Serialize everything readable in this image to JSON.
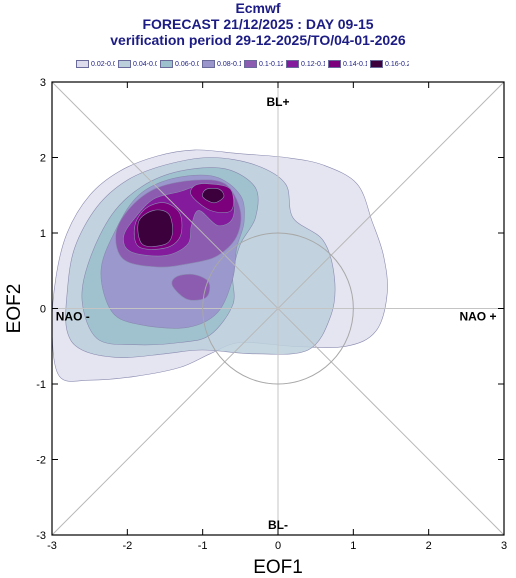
{
  "header": {
    "title": "Ecmwf",
    "subtitle": "FORECAST 21/12/2025 : DAY 09-15",
    "period": "verification period 29-12-2025/TO/04-01-2026"
  },
  "legend": [
    {
      "label": "0.02-0.04",
      "color": "#dcdcec"
    },
    {
      "label": "0.04-0.06",
      "color": "#bcd0dc"
    },
    {
      "label": "0.06-0.08",
      "color": "#9cc0cc"
    },
    {
      "label": "0.08-0.1",
      "color": "#9a96cc"
    },
    {
      "label": "0.1-0.12",
      "color": "#8c5cb0"
    },
    {
      "label": "0.12-0.14",
      "color": "#841a9c"
    },
    {
      "label": "0.14-0.16",
      "color": "#7c007c"
    },
    {
      "label": "0.16-0.29",
      "color": "#3c003c"
    }
  ],
  "regime_labels": {
    "top": "BL+",
    "bottom": "BL-",
    "left": "NAO -",
    "right": "NAO +"
  },
  "chart_data": {
    "type": "contour",
    "xlabel": "EOF1",
    "ylabel": "EOF2",
    "xlim": [
      -3,
      3
    ],
    "ylim": [
      -3,
      3
    ],
    "xticks": [
      "-3",
      "-2",
      "-1",
      "0",
      "1",
      "2",
      "3"
    ],
    "yticks": [
      "-3",
      "-2",
      "-1",
      "0",
      "1",
      "2",
      "3"
    ],
    "unit_circle": {
      "cx": 0,
      "cy": 0,
      "r": 1
    },
    "diagonals": true,
    "crosshair": true,
    "density_levels": [
      {
        "range": "0.02-0.04",
        "color": "#dcdcec",
        "opacity": 0.75,
        "points": [
          [
            -2.9,
            -0.9
          ],
          [
            -2.5,
            -0.95
          ],
          [
            -1.9,
            -0.9
          ],
          [
            -1.3,
            -0.78
          ],
          [
            -0.9,
            -0.6
          ],
          [
            -0.5,
            -0.45
          ],
          [
            0.2,
            -0.5
          ],
          [
            0.9,
            -0.5
          ],
          [
            1.3,
            -0.3
          ],
          [
            1.45,
            0.2
          ],
          [
            1.4,
            0.7
          ],
          [
            1.25,
            1.15
          ],
          [
            1.05,
            1.65
          ],
          [
            0.6,
            1.9
          ],
          [
            0.1,
            2.0
          ],
          [
            -0.5,
            2.05
          ],
          [
            -1.1,
            2.1
          ],
          [
            -1.6,
            2.02
          ],
          [
            -2.1,
            1.82
          ],
          [
            -2.5,
            1.5
          ],
          [
            -2.8,
            1.0
          ],
          [
            -2.95,
            0.4
          ],
          [
            -3.0,
            -0.3
          ]
        ]
      },
      {
        "range": "0.04-0.06",
        "color": "#bcd0dc",
        "opacity": 0.85,
        "points": [
          [
            -2.6,
            -0.55
          ],
          [
            -2.1,
            -0.65
          ],
          [
            -1.5,
            -0.6
          ],
          [
            -1.0,
            -0.55
          ],
          [
            -0.3,
            -0.6
          ],
          [
            0.4,
            -0.55
          ],
          [
            0.7,
            -0.1
          ],
          [
            0.75,
            0.4
          ],
          [
            0.6,
            0.9
          ],
          [
            0.2,
            1.2
          ],
          [
            0.1,
            1.65
          ],
          [
            -0.3,
            1.9
          ],
          [
            -0.9,
            2.0
          ],
          [
            -1.5,
            1.9
          ],
          [
            -2.0,
            1.7
          ],
          [
            -2.4,
            1.35
          ],
          [
            -2.7,
            0.8
          ],
          [
            -2.8,
            0.2
          ],
          [
            -2.8,
            -0.3
          ]
        ]
      },
      {
        "range": "0.06-0.08",
        "color": "#9cc0cc",
        "opacity": 0.9,
        "points": [
          [
            -2.4,
            -0.4
          ],
          [
            -1.9,
            -0.48
          ],
          [
            -1.3,
            -0.45
          ],
          [
            -0.9,
            -0.35
          ],
          [
            -0.6,
            0.05
          ],
          [
            -0.6,
            0.45
          ],
          [
            -0.5,
            0.85
          ],
          [
            -0.3,
            1.2
          ],
          [
            -0.3,
            1.6
          ],
          [
            -0.7,
            1.85
          ],
          [
            -1.3,
            1.82
          ],
          [
            -1.8,
            1.62
          ],
          [
            -2.2,
            1.25
          ],
          [
            -2.5,
            0.65
          ],
          [
            -2.6,
            0.1
          ]
        ]
      },
      {
        "range": "0.08-0.1",
        "color": "#9a96cc",
        "opacity": 0.95,
        "points": [
          [
            -2.2,
            -0.05
          ],
          [
            -1.8,
            -0.22
          ],
          [
            -1.2,
            -0.25
          ],
          [
            -0.8,
            -0.05
          ],
          [
            -0.6,
            0.4
          ],
          [
            -0.55,
            0.8
          ],
          [
            -0.45,
            1.15
          ],
          [
            -0.5,
            1.5
          ],
          [
            -0.85,
            1.75
          ],
          [
            -1.4,
            1.72
          ],
          [
            -1.85,
            1.5
          ],
          [
            -2.15,
            1.05
          ],
          [
            -2.35,
            0.5
          ]
        ]
      },
      {
        "range": "0.1-0.12",
        "color": "#8c5cb0",
        "opacity": 1,
        "points": [
          [
            -2.05,
            0.65
          ],
          [
            -1.6,
            0.55
          ],
          [
            -1.15,
            0.6
          ],
          [
            -0.8,
            0.7
          ],
          [
            -0.55,
            0.95
          ],
          [
            -0.5,
            1.3
          ],
          [
            -0.7,
            1.65
          ],
          [
            -1.1,
            1.7
          ],
          [
            -1.6,
            1.6
          ],
          [
            -1.95,
            1.35
          ],
          [
            -2.15,
            1.0
          ]
        ]
      },
      {
        "range": "0.1-0.12",
        "color": "#8c5cb0",
        "opacity": 1,
        "points": [
          [
            -1.4,
            0.3
          ],
          [
            -1.2,
            0.12
          ],
          [
            -0.95,
            0.15
          ],
          [
            -0.92,
            0.35
          ],
          [
            -1.12,
            0.45
          ],
          [
            -1.35,
            0.42
          ]
        ]
      },
      {
        "range": "0.12-0.14",
        "color": "#841a9c",
        "opacity": 1,
        "points": [
          [
            -1.95,
            0.75
          ],
          [
            -1.5,
            0.7
          ],
          [
            -1.2,
            0.85
          ],
          [
            -1.15,
            1.1
          ],
          [
            -1.05,
            1.3
          ],
          [
            -0.8,
            1.1
          ],
          [
            -0.6,
            1.2
          ],
          [
            -0.62,
            1.55
          ],
          [
            -0.95,
            1.65
          ],
          [
            -1.3,
            1.55
          ],
          [
            -1.65,
            1.45
          ],
          [
            -1.9,
            1.2
          ],
          [
            -2.05,
            0.95
          ]
        ]
      },
      {
        "range": "0.14-0.16",
        "color": "#7c007c",
        "opacity": 1,
        "points": [
          [
            -1.85,
            0.82
          ],
          [
            -1.5,
            0.8
          ],
          [
            -1.3,
            0.95
          ],
          [
            -1.3,
            1.25
          ],
          [
            -1.5,
            1.4
          ],
          [
            -1.75,
            1.33
          ],
          [
            -1.9,
            1.1
          ]
        ]
      },
      {
        "range": "0.14-0.16",
        "color": "#7c007c",
        "opacity": 1,
        "points": [
          [
            -1.15,
            1.5
          ],
          [
            -0.9,
            1.3
          ],
          [
            -0.62,
            1.3
          ],
          [
            -0.63,
            1.58
          ],
          [
            -0.9,
            1.65
          ],
          [
            -1.1,
            1.63
          ]
        ]
      },
      {
        "range": "0.16-0.29",
        "color": "#3c003c",
        "opacity": 1,
        "points": [
          [
            -1.8,
            0.85
          ],
          [
            -1.5,
            0.85
          ],
          [
            -1.4,
            1.0
          ],
          [
            -1.45,
            1.25
          ],
          [
            -1.65,
            1.3
          ],
          [
            -1.85,
            1.15
          ]
        ]
      },
      {
        "range": "0.16-0.29",
        "color": "#3c003c",
        "opacity": 1,
        "points": [
          [
            -1.0,
            1.48
          ],
          [
            -0.85,
            1.4
          ],
          [
            -0.72,
            1.48
          ],
          [
            -0.78,
            1.58
          ],
          [
            -0.95,
            1.58
          ]
        ]
      }
    ]
  }
}
